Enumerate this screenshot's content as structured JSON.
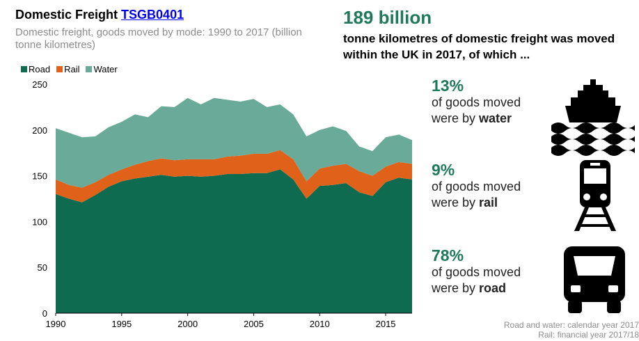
{
  "title": {
    "text": "Domestic Freight",
    "link": "TSGB0401"
  },
  "subtitle": "Domestic freight, goods moved by mode: 1990 to 2017 (billion tonne kilometres)",
  "colors": {
    "road": "#0f6b50",
    "rail": "#e0621a",
    "water": "#6aaa98",
    "accent": "#1f7a5c"
  },
  "chart_data": {
    "type": "area",
    "stacked": true,
    "title": "Domestic freight, goods moved by mode: 1990 to 2017",
    "ylabel": "billion tonne kilometres",
    "x": [
      1990,
      1991,
      1992,
      1993,
      1994,
      1995,
      1996,
      1997,
      1998,
      1999,
      2000,
      2001,
      2002,
      2003,
      2004,
      2005,
      2006,
      2007,
      2008,
      2009,
      2010,
      2011,
      2012,
      2013,
      2014,
      2015,
      2016,
      2017
    ],
    "xticks": [
      1990,
      1995,
      2000,
      2005,
      2010,
      2015
    ],
    "yticks": [
      0,
      50,
      100,
      150,
      200,
      250
    ],
    "xlim": [
      1990,
      2017
    ],
    "ylim": [
      0,
      250
    ],
    "legend_position": "top-left",
    "series": [
      {
        "name": "Road",
        "values": [
          130,
          125,
          121,
          129,
          138,
          144,
          147,
          149,
          151,
          149,
          150,
          149,
          150,
          152,
          152,
          153,
          153,
          157,
          146,
          125,
          139,
          140,
          142,
          132,
          128,
          143,
          148,
          146
        ]
      },
      {
        "name": "Rail",
        "values": [
          16,
          15,
          16,
          14,
          13,
          13,
          15,
          17,
          18,
          18,
          18,
          19,
          18,
          19,
          20,
          21,
          21,
          21,
          22,
          19,
          19,
          21,
          21,
          23,
          22,
          17,
          17,
          17
        ]
      },
      {
        "name": "Water",
        "values": [
          56,
          57,
          55,
          50,
          52,
          52,
          55,
          48,
          57,
          58,
          67,
          60,
          67,
          62,
          59,
          60,
          51,
          50,
          49,
          49,
          42,
          43,
          36,
          27,
          27,
          32,
          30,
          26
        ]
      }
    ]
  },
  "headline": {
    "value": "189 billion",
    "text": "tonne kilometres of domestic freight was moved within the UK in 2017, of which ..."
  },
  "stats": [
    {
      "pct": "13%",
      "line1": "of goods moved",
      "prefix": "were by ",
      "mode": "water",
      "icon": "ship-icon"
    },
    {
      "pct": "9%",
      "line1": "of goods moved",
      "prefix": "were by ",
      "mode": "rail",
      "icon": "train-icon"
    },
    {
      "pct": "78%",
      "line1": "of goods moved",
      "prefix": "were by ",
      "mode": "road",
      "icon": "lorry-icon"
    }
  ],
  "notes": [
    "Road and water: calendar year 2017",
    "Rail: financial year 2017/18"
  ]
}
